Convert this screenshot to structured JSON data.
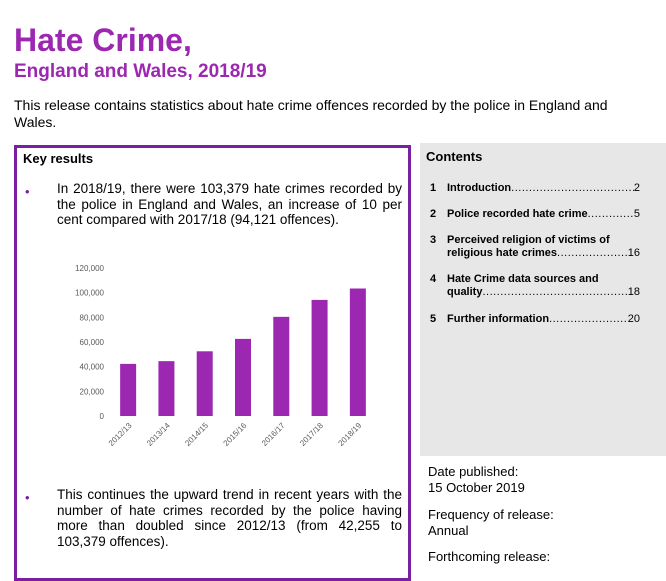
{
  "header": {
    "title": "Hate Crime,",
    "subtitle": "England and Wales, 2018/19",
    "intro": "This release contains statistics about hate crime offences recorded by the police in England and Wales."
  },
  "key_results": {
    "heading": "Key results",
    "bullet_symbol": "•",
    "points": [
      "In 2018/19, there were 103,379 hate crimes recorded by the police in England and Wales, an increase of 10 per cent compared with 2017/18 (94,121 offences).",
      "This continues the upward trend in recent years with the number of hate crimes recorded by the police having more than doubled since 2012/13 (from 42,255 to 103,379 offences)."
    ]
  },
  "chart_data": {
    "type": "bar",
    "title": "",
    "xlabel": "",
    "ylabel": "",
    "categories": [
      "2012/13",
      "2013/14",
      "2014/15",
      "2015/16",
      "2016/17",
      "2017/18",
      "2018/19"
    ],
    "values": [
      42255,
      44480,
      52465,
      62518,
      80393,
      94121,
      103379
    ],
    "ylim": [
      0,
      120000
    ],
    "yticks": [
      0,
      20000,
      40000,
      60000,
      80000,
      100000,
      120000
    ],
    "ytick_labels": [
      "0",
      "20,000",
      "40,000",
      "60,000",
      "80,000",
      "100,000",
      "120,000"
    ],
    "grid": false,
    "bar_color": "#9c27b0"
  },
  "contents": {
    "heading": "Contents",
    "items": [
      {
        "num": "1",
        "lines": [
          "Introduction"
        ],
        "page": "2"
      },
      {
        "num": "2",
        "lines": [
          "Police recorded hate crime"
        ],
        "page": "5"
      },
      {
        "num": "3",
        "lines": [
          "Perceived religion of victims of",
          "religious hate crimes"
        ],
        "page": "16"
      },
      {
        "num": "4",
        "lines": [
          "Hate Crime data sources and",
          "quality"
        ],
        "page": "18"
      },
      {
        "num": "5",
        "lines": [
          "Further information"
        ],
        "page": "20"
      }
    ]
  },
  "release_info": {
    "date_label": "Date published:",
    "date_value": "15 October 2019",
    "frequency_label": "Frequency of release:",
    "frequency_value": "Annual",
    "forthcoming_label": "Forthcoming release:"
  },
  "colors": {
    "accent": "#9c27b0",
    "border": "#7b1fa2",
    "contents_bg": "#e7e7e7"
  }
}
